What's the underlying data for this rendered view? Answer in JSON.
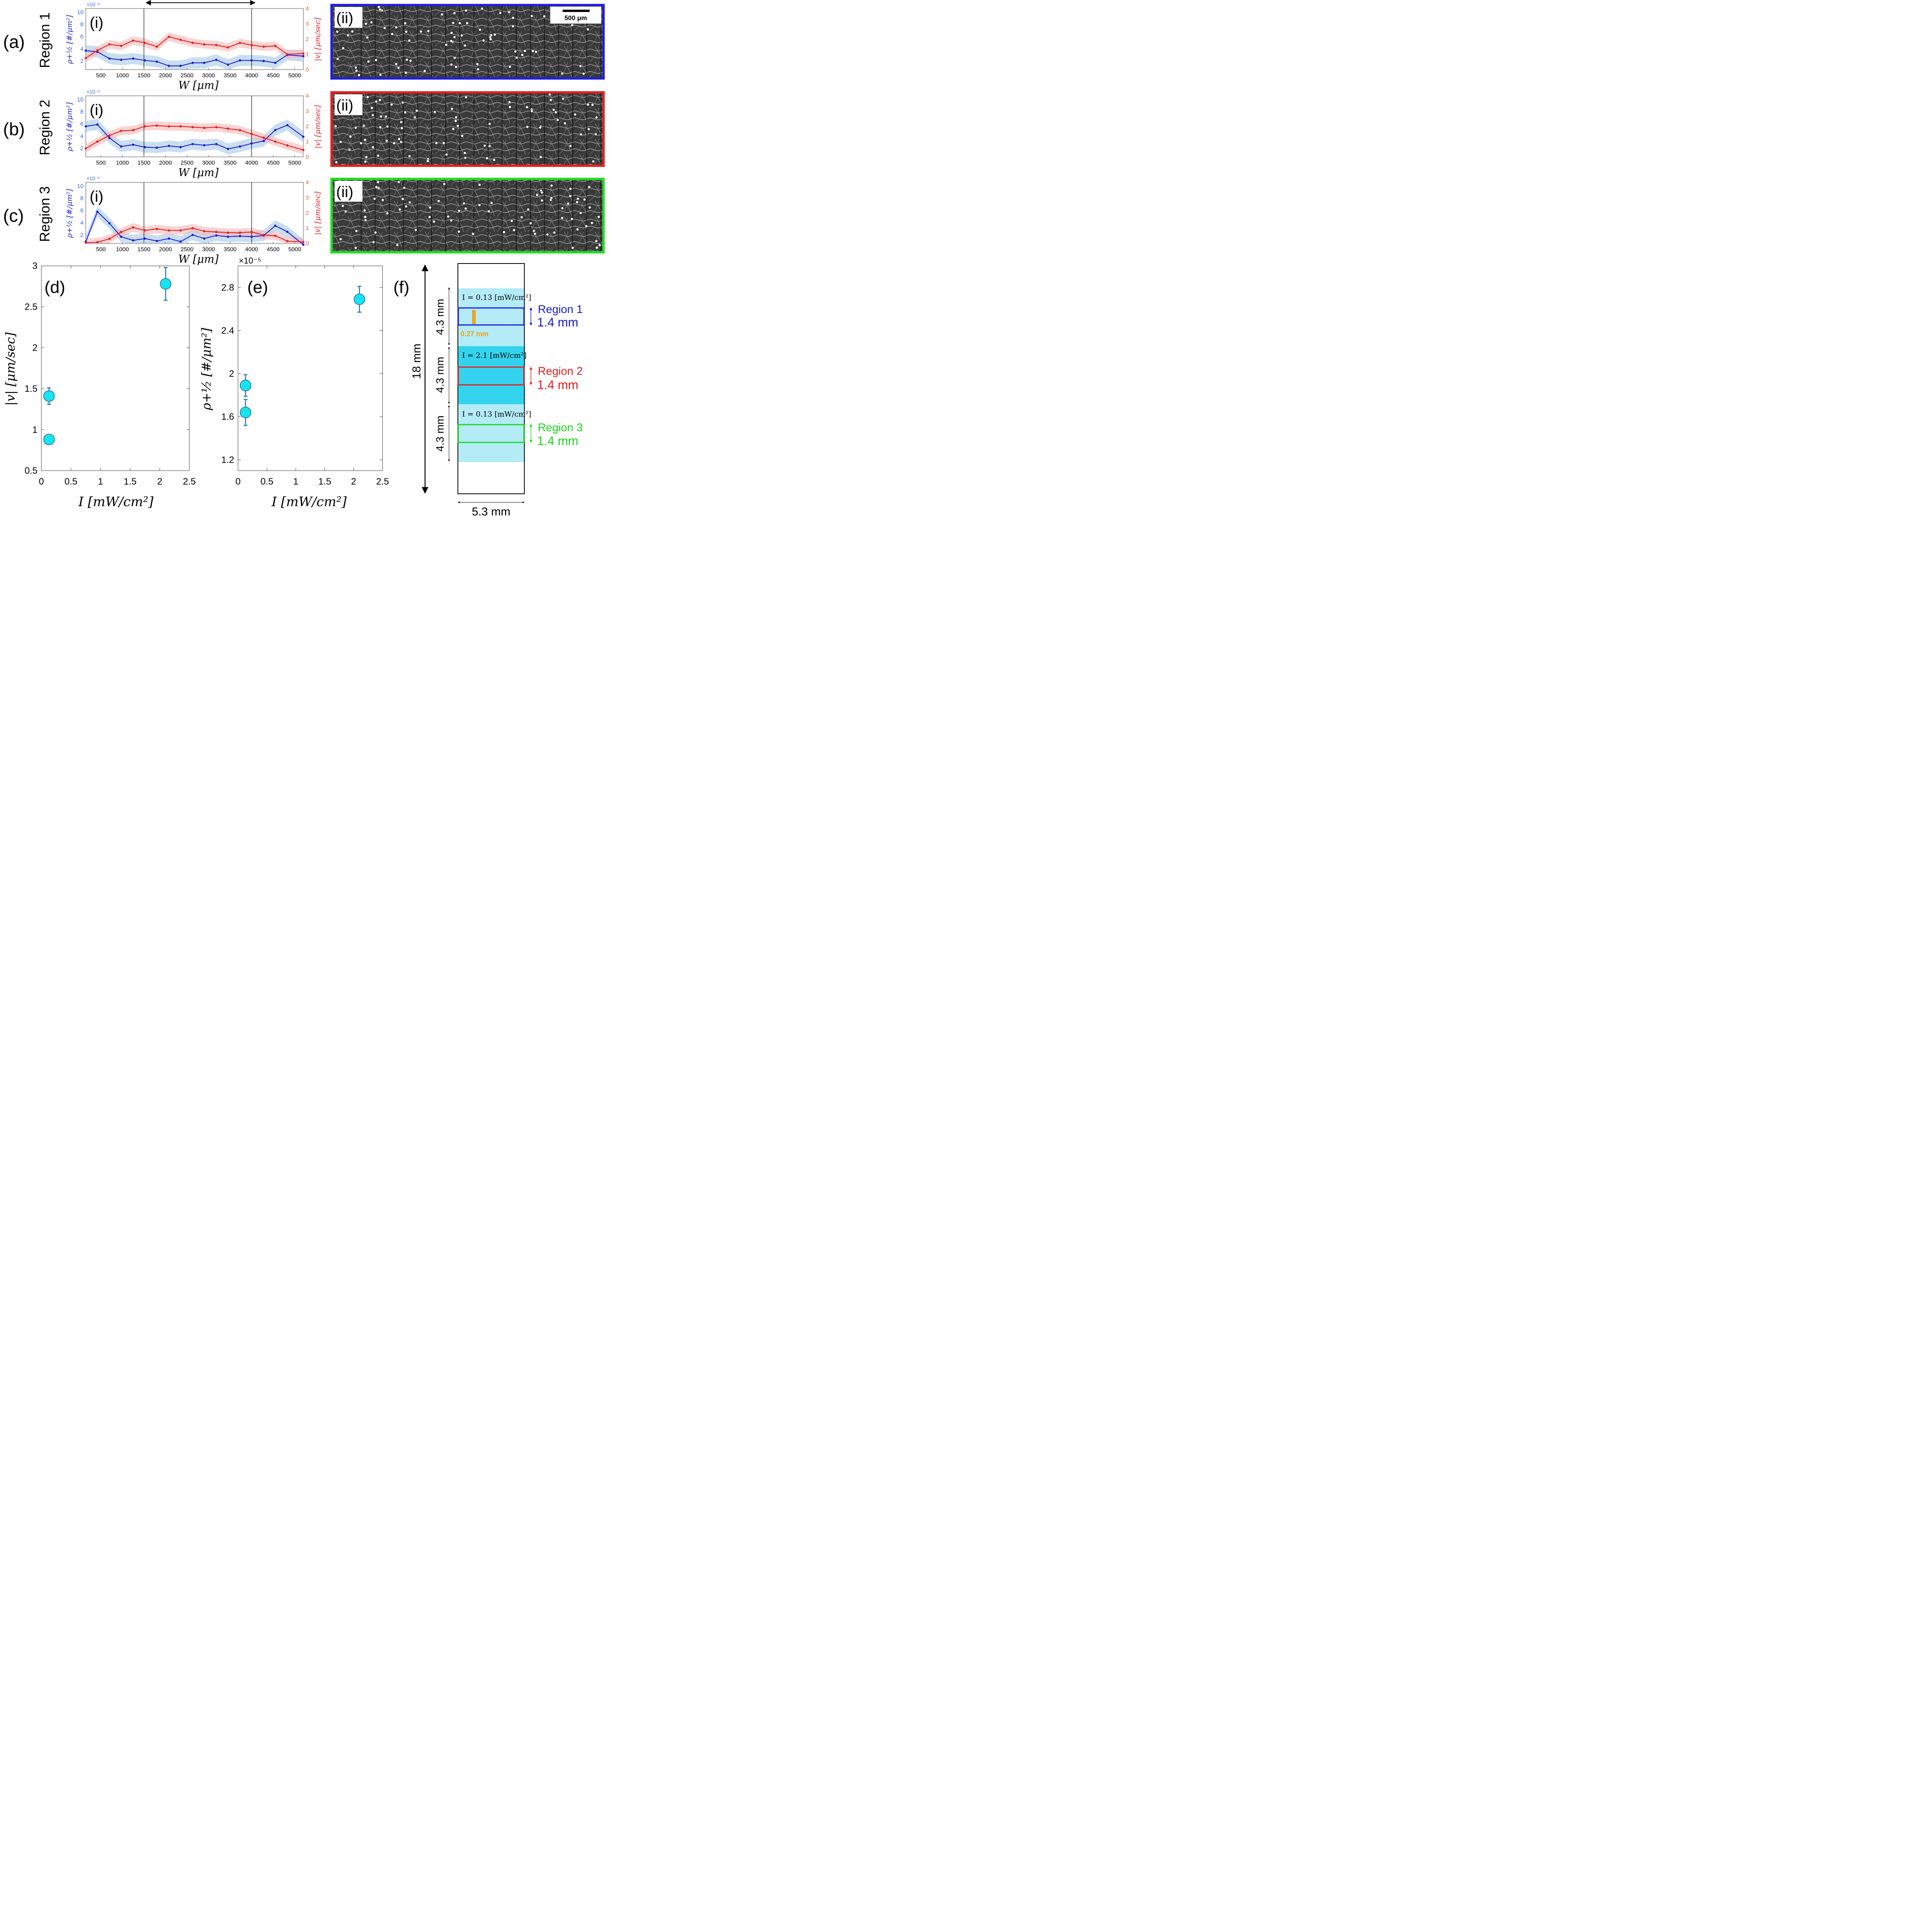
{
  "top_arrow": true,
  "rows": [
    {
      "label": "(a)",
      "region": "Region 1",
      "sub_i": "(i)",
      "sub_ii": "(ii)",
      "frame_color": "#2020e0",
      "scale_bar": "500 μm"
    },
    {
      "label": "(b)",
      "region": "Region 2",
      "sub_i": "(i)",
      "sub_ii": "(ii)",
      "frame_color": "#e82020",
      "scale_bar": ""
    },
    {
      "label": "(c)",
      "region": "Region 3",
      "sub_i": "(i)",
      "sub_ii": "(ii)",
      "frame_color": "#20e020",
      "scale_bar": ""
    }
  ],
  "line_axes": {
    "xlabel": "W [μm]",
    "left_ylabel": "ρ+½ [#/μm²]",
    "right_ylabel": "|v| [μm/sec]",
    "left_exponent": "×10⁻⁵",
    "x_ticks": [
      500,
      1000,
      1500,
      2000,
      2500,
      3000,
      3500,
      4000,
      4500,
      5000
    ],
    "left_ticks": [
      2,
      4,
      6,
      8,
      10
    ],
    "right_ticks": [
      0,
      1,
      2,
      3,
      4
    ],
    "xlim": [
      150,
      5200
    ],
    "left_ylim": [
      0.6,
      10.6
    ],
    "right_ylim": [
      0,
      4
    ],
    "vlines": [
      1500,
      4000
    ]
  },
  "panel_d": {
    "label": "(d)",
    "ylabel": "|v| [μm/sec]",
    "xlabel": "I [mW/cm²]",
    "x_ticks": [
      "0",
      "0.5",
      "1",
      "1.5",
      "2",
      "2.5"
    ],
    "y_ticks": [
      "0.5",
      "1",
      "1.5",
      "2",
      "2.5",
      "3"
    ]
  },
  "panel_e": {
    "label": "(e)",
    "ylabel": "ρ+½ [#/μm²]",
    "xlabel": "I [mW/cm²]",
    "exponent": "×10⁻⁵",
    "x_ticks": [
      "0",
      "0.5",
      "1",
      "1.5",
      "2",
      "2.5"
    ],
    "y_ticks": [
      "1.2",
      "1.6",
      "2",
      "2.4",
      "2.8"
    ]
  },
  "panel_f": {
    "label": "(f)",
    "total_height": "18 mm",
    "width": "5.3 mm",
    "segment": "4.3 mm",
    "orange_width": "0.27 mm",
    "bands": [
      {
        "intensity": "I = 0.13 [mW/cm²]",
        "color": "#b3ebf7",
        "region": "Region 1",
        "region_color": "#1a1adb",
        "height": "1.4 mm"
      },
      {
        "intensity": "I = 2.1 [mW/cm²]",
        "color": "#33d3ee",
        "region": "Region 2",
        "region_color": "#e81c1c",
        "height": "1.4 mm"
      },
      {
        "intensity": "I = 0.13 [mW/cm²]",
        "color": "#b3ebf7",
        "region": "Region 3",
        "region_color": "#1ad81a",
        "height": "1.4 mm"
      }
    ]
  },
  "chart_data": [
    {
      "type": "line",
      "panel": "(a)(i)",
      "title": "Region 1",
      "xlabel": "W [μm]",
      "ylabel": "ρ+½ [#/μm²] ×10⁻⁵",
      "y2label": "|v| [μm/sec]",
      "x": [
        150,
        420,
        700,
        970,
        1250,
        1520,
        1800,
        2080,
        2350,
        2630,
        2900,
        3180,
        3450,
        3730,
        4000,
        4280,
        4550,
        4830,
        5200
      ],
      "series": [
        {
          "name": "ρ+½",
          "axis": "left",
          "color": "#1a1adb",
          "values": [
            3.7,
            3.5,
            2.4,
            2.2,
            2.4,
            2.1,
            1.9,
            1.2,
            1.2,
            1.7,
            1.7,
            2.2,
            1.4,
            2.1,
            2.1,
            2.0,
            1.7,
            3.0,
            2.8
          ]
        },
        {
          "name": "|v|",
          "axis": "right",
          "color": "#e81c1c",
          "values": [
            0.75,
            1.25,
            1.65,
            1.55,
            1.9,
            1.75,
            1.5,
            2.15,
            1.95,
            1.75,
            1.65,
            1.6,
            1.45,
            1.75,
            1.6,
            1.5,
            1.55,
            1.0,
            1.05
          ]
        }
      ],
      "xlim": [
        150,
        5200
      ],
      "ylim": [
        0.6,
        10.6
      ],
      "y2lim": [
        0,
        4
      ]
    },
    {
      "type": "line",
      "panel": "(b)(i)",
      "title": "Region 2",
      "xlabel": "W [μm]",
      "ylabel": "ρ+½ [#/μm²] ×10⁻⁵",
      "y2label": "|v| [μm/sec]",
      "x": [
        150,
        420,
        700,
        970,
        1250,
        1520,
        1800,
        2080,
        2350,
        2630,
        2900,
        3180,
        3450,
        3730,
        4000,
        4280,
        4550,
        4830,
        5200
      ],
      "series": [
        {
          "name": "ρ+½",
          "axis": "left",
          "color": "#1a1adb",
          "values": [
            5.6,
            5.9,
            3.7,
            2.3,
            2.6,
            2.2,
            2.1,
            2.4,
            2.2,
            2.7,
            2.5,
            2.7,
            1.9,
            2.3,
            2.8,
            3.2,
            5.0,
            5.8,
            3.9
          ]
        },
        {
          "name": "|v|",
          "axis": "right",
          "color": "#e81c1c",
          "values": [
            0.55,
            1.0,
            1.4,
            1.7,
            1.75,
            2.0,
            2.05,
            2.0,
            2.0,
            1.95,
            1.9,
            1.95,
            1.85,
            1.75,
            1.5,
            1.25,
            1.0,
            0.75,
            0.45
          ]
        }
      ],
      "xlim": [
        150,
        5200
      ],
      "ylim": [
        0.6,
        10.6
      ],
      "y2lim": [
        0,
        4
      ]
    },
    {
      "type": "line",
      "panel": "(c)(i)",
      "title": "Region 3",
      "xlabel": "W [μm]",
      "ylabel": "ρ+½ [#/μm²] ×10⁻⁵",
      "y2label": "|v| [μm/sec]",
      "x": [
        150,
        420,
        700,
        970,
        1250,
        1520,
        1800,
        2080,
        2350,
        2630,
        2900,
        3180,
        3450,
        3730,
        4000,
        4280,
        4550,
        4830,
        5200
      ],
      "series": [
        {
          "name": "ρ+½",
          "axis": "left",
          "color": "#1a1adb",
          "values": [
            0.9,
            5.8,
            3.9,
            1.7,
            1.1,
            1.4,
            1.0,
            1.4,
            0.9,
            2.0,
            1.4,
            1.9,
            1.7,
            1.8,
            1.7,
            1.9,
            3.5,
            2.5,
            0.4
          ]
        },
        {
          "name": "|v|",
          "axis": "right",
          "color": "#e81c1c",
          "values": [
            0.05,
            0.08,
            0.3,
            0.75,
            1.05,
            0.85,
            0.95,
            0.85,
            0.85,
            1.0,
            0.8,
            0.75,
            0.7,
            0.7,
            0.75,
            0.55,
            0.5,
            0.15,
            0.1
          ]
        }
      ],
      "xlim": [
        150,
        5200
      ],
      "ylim": [
        0.6,
        10.6
      ],
      "y2lim": [
        0,
        4
      ]
    },
    {
      "type": "scatter",
      "panel": "(d)",
      "xlabel": "I [mW/cm²]",
      "ylabel": "|v| [μm/sec]",
      "xlim": [
        0,
        2.5
      ],
      "ylim": [
        0.5,
        3
      ],
      "points": [
        {
          "x": 0.13,
          "y": 1.41,
          "err": 0.1
        },
        {
          "x": 0.13,
          "y": 0.88,
          "err": 0
        },
        {
          "x": 2.1,
          "y": 2.78,
          "err": 0.2
        }
      ]
    },
    {
      "type": "scatter",
      "panel": "(e)",
      "xlabel": "I [mW/cm²]",
      "ylabel": "ρ+½ [#/μm²] ×10⁻⁵",
      "xlim": [
        0,
        2.5
      ],
      "ylim": [
        1.1,
        3.0
      ],
      "points": [
        {
          "x": 0.13,
          "y": 1.89,
          "err": 0.1
        },
        {
          "x": 0.13,
          "y": 1.64,
          "err": 0.12
        },
        {
          "x": 2.1,
          "y": 2.69,
          "err": 0.12
        }
      ]
    }
  ]
}
